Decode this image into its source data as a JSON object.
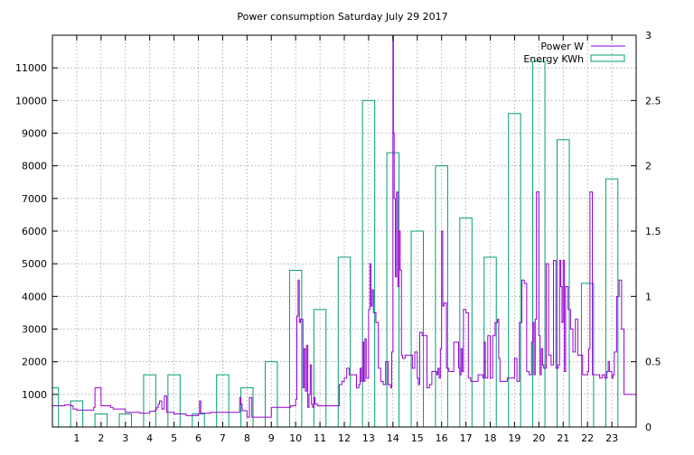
{
  "chart_data": {
    "type": "bar+line",
    "title": "Power consumption Saturday July 29 2017",
    "xlabel": "",
    "ylabel": "",
    "y2label": "",
    "xlim": [
      0,
      24
    ],
    "ylim": [
      0,
      12000
    ],
    "y2lim": [
      0,
      3
    ],
    "x_ticks": [
      "1",
      "2",
      "3",
      "4",
      "5",
      "6",
      "7",
      "8",
      "9",
      "10",
      "11",
      "12",
      "13",
      "14",
      "15",
      "16",
      "17",
      "18",
      "19",
      "20",
      "21",
      "22",
      "23"
    ],
    "y_ticks": [
      "1000",
      "2000",
      "3000",
      "4000",
      "5000",
      "6000",
      "7000",
      "8000",
      "9000",
      "10000",
      "11000"
    ],
    "y2_ticks": [
      "0",
      "0.5",
      "1",
      "1.5",
      "2",
      "2.5",
      "3"
    ],
    "grid": true,
    "legend_position": "top-right",
    "colors": {
      "power": "#9400d3",
      "energy": "#009e73"
    },
    "series": [
      {
        "name": "Energy KWh",
        "kind": "bar",
        "x": [
          0,
          1,
          2,
          3,
          4,
          5,
          6,
          7,
          8,
          9,
          10,
          11,
          12,
          13,
          14,
          15,
          16,
          17,
          18,
          19,
          20,
          21,
          22,
          23
        ],
        "values": [
          0.3,
          0.2,
          0.1,
          0.1,
          0.4,
          0.4,
          0.1,
          0.4,
          0.3,
          0.5,
          1.2,
          0.9,
          1.3,
          2.5,
          2.1,
          1.5,
          2.0,
          1.6,
          1.3,
          2.4,
          2.8,
          2.2,
          1.1,
          1.9
        ]
      },
      {
        "name": "Power W",
        "kind": "line",
        "x": [
          0,
          0.25,
          0.5,
          0.75,
          0.85,
          1,
          1.5,
          1.7,
          1.75,
          2,
          2.4,
          2.5,
          3,
          3.5,
          3.6,
          4,
          4.2,
          4.25,
          4.3,
          4.35,
          4.4,
          4.5,
          4.6,
          4.7,
          5,
          5.5,
          6,
          6.05,
          6.1,
          6.5,
          7,
          7.5,
          7.7,
          7.75,
          7.8,
          8,
          8.1,
          8.2,
          9,
          9.5,
          9.8,
          10,
          10.05,
          10.1,
          10.15,
          10.2,
          10.3,
          10.35,
          10.4,
          10.45,
          10.5,
          10.55,
          10.6,
          10.65,
          10.7,
          10.75,
          10.8,
          10.9,
          11,
          11.5,
          11.8,
          11.9,
          12,
          12.1,
          12.2,
          12.5,
          12.6,
          12.65,
          12.7,
          12.75,
          12.8,
          12.85,
          12.9,
          13,
          13.05,
          13.1,
          13.15,
          13.2,
          13.3,
          13.4,
          13.5,
          13.6,
          13.7,
          13.8,
          13.9,
          13.95,
          14,
          14.02,
          14.05,
          14.1,
          14.15,
          14.2,
          14.25,
          14.3,
          14.35,
          14.4,
          14.5,
          14.6,
          14.8,
          14.9,
          15,
          15.05,
          15.1,
          15.2,
          15.4,
          15.5,
          15.6,
          15.8,
          15.85,
          15.9,
          15.95,
          16,
          16.05,
          16.1,
          16.2,
          16.3,
          16.5,
          16.7,
          16.75,
          16.8,
          16.85,
          16.9,
          17,
          17.1,
          17.2,
          17.5,
          17.7,
          17.75,
          17.8,
          17.9,
          18,
          18.1,
          18.2,
          18.3,
          18.35,
          18.4,
          18.5,
          18.7,
          19,
          19.1,
          19.2,
          19.3,
          19.35,
          19.4,
          19.5,
          19.6,
          19.7,
          19.75,
          19.8,
          19.85,
          19.9,
          20,
          20.05,
          20.1,
          20.15,
          20.2,
          20.3,
          20.4,
          20.5,
          20.6,
          20.7,
          20.8,
          20.85,
          20.9,
          20.95,
          21,
          21.05,
          21.1,
          21.2,
          21.3,
          21.4,
          21.5,
          21.6,
          21.8,
          21.9,
          22,
          22.05,
          22.1,
          22.2,
          22.5,
          22.6,
          22.7,
          22.8,
          22.85,
          22.9,
          23,
          23.05,
          23.1,
          23.2,
          23.3,
          23.4,
          23.5,
          23.9,
          24
        ],
        "values": [
          650,
          650,
          680,
          650,
          550,
          520,
          520,
          600,
          1200,
          650,
          600,
          550,
          450,
          450,
          420,
          480,
          500,
          550,
          600,
          700,
          800,
          550,
          950,
          450,
          400,
          350,
          400,
          800,
          420,
          450,
          450,
          450,
          900,
          700,
          500,
          300,
          900,
          300,
          600,
          600,
          650,
          850,
          3400,
          4500,
          3200,
          3300,
          1200,
          2400,
          1100,
          2500,
          600,
          1000,
          1900,
          700,
          600,
          900,
          700,
          650,
          650,
          650,
          1300,
          1400,
          1500,
          1800,
          1600,
          1200,
          1300,
          1800,
          1400,
          2600,
          1400,
          2700,
          1500,
          3600,
          5000,
          3700,
          4200,
          3500,
          3200,
          1800,
          1400,
          1300,
          2000,
          1300,
          1200,
          2300,
          12000,
          9000,
          7000,
          4600,
          7200,
          4300,
          6000,
          4800,
          2200,
          2100,
          2200,
          2200,
          1800,
          2300,
          1500,
          1300,
          2900,
          2800,
          1200,
          1300,
          1700,
          1600,
          1800,
          1500,
          2400,
          6000,
          3700,
          3800,
          1800,
          1700,
          2600,
          1800,
          1600,
          2400,
          1700,
          3600,
          3500,
          1500,
          1400,
          1600,
          1500,
          2600,
          1500,
          2800,
          1500,
          2800,
          3200,
          3300,
          2100,
          1400,
          1400,
          1500,
          2100,
          1400,
          3200,
          4500,
          4500,
          4400,
          1700,
          1600,
          2600,
          3200,
          1600,
          3300,
          7200,
          2800,
          1600,
          2400,
          1900,
          1800,
          5000,
          2200,
          1900,
          5100,
          1800,
          1900,
          5100,
          4300,
          3200,
          5100,
          1700,
          4300,
          3600,
          3000,
          2300,
          3300,
          2200,
          1600,
          1600,
          1700,
          2400,
          7200,
          1600,
          1500,
          1600,
          1500,
          1700,
          2000,
          1700,
          1500,
          1600,
          2300,
          4000,
          4500,
          3000,
          1000,
          1000,
          1200
        ]
      }
    ]
  }
}
